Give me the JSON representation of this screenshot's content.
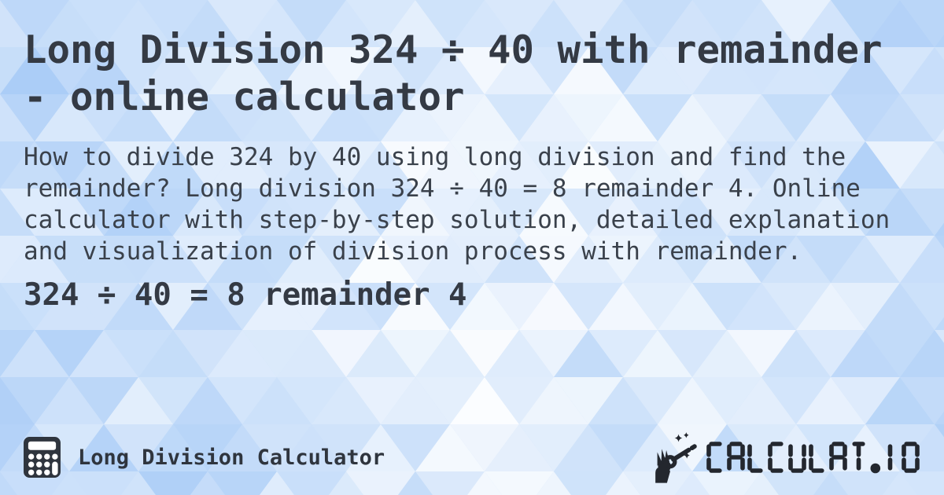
{
  "header": {
    "title": "Long Division 324 ÷ 40 with remainder - online calculator"
  },
  "main": {
    "description": "How to divide 324 by 40 using long division and find the remainder? Long division 324 ÷ 40 = 8 remainder 4. Online calculator with step-by-step solution, detailed explanation and visualization of division process with remainder.",
    "result": "324 ÷ 40 = 8 remainder 4"
  },
  "footer": {
    "app_label": "Long Division Calculator",
    "brand": "CALCULAT.IO"
  },
  "icons": {
    "calculator": "calculator-icon",
    "wand": "magic-wand-hand-icon"
  },
  "colors": {
    "text_title": "#343a44",
    "text_body": "#3a414b",
    "logo": "#23272e",
    "bg_blue_hue": "213",
    "bg_blue_strong": "#a7cdf4",
    "bg_light": "#ffffff"
  }
}
